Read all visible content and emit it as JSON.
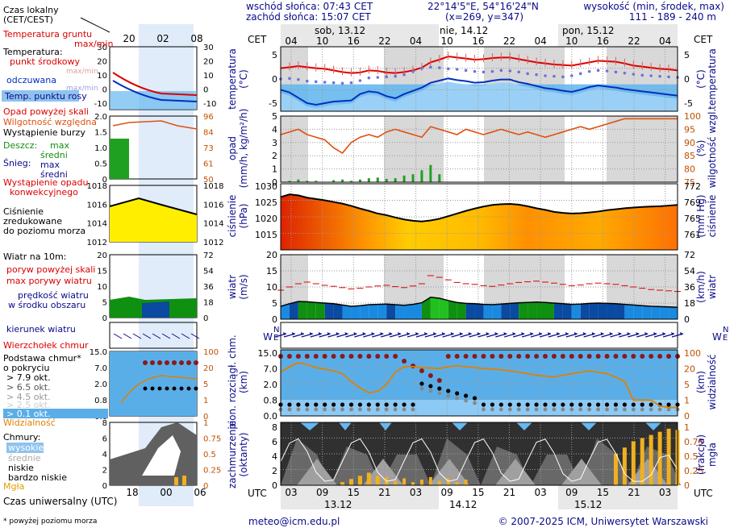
{
  "header": {
    "sunrise": "wschód słońca: 07:43 CET",
    "sunset": "zachód słońca: 15:07 CET",
    "coords": "22°14'5\"E, 54°16'24\"N",
    "grid": "(x=269,  y=347)",
    "height_label": "wysokość (min, środek, max)",
    "height_values": "111 - 189 - 240 m"
  },
  "days": {
    "top": [
      "sob, 13.12",
      "nie, 14.12",
      "pon, 15.12"
    ],
    "bottom": [
      "13.12",
      "14.12",
      "15.12"
    ]
  },
  "cet_ticks": [
    "04",
    "10",
    "16",
    "22",
    "04",
    "10",
    "16",
    "22",
    "04",
    "10",
    "16",
    "22",
    "04"
  ],
  "utc_ticks": [
    "03",
    "09",
    "15",
    "21",
    "03",
    "09",
    "15",
    "21",
    "03",
    "09",
    "15",
    "21",
    "03"
  ],
  "cet_label": "CET",
  "utc_label": "UTC",
  "legend": {
    "time_local": "Czas lokalny",
    "time_local2": "(CET/CEST)",
    "time_local_ticks": [
      "20",
      "02",
      "08"
    ],
    "time_utc": "Czas uniwersalny (UTC)",
    "time_utc_ticks": [
      "18",
      "00",
      "06"
    ],
    "temp": {
      "ground": "Temperatura gruntu",
      "ground_mm": "max/min",
      "temp": "Temperatura:",
      "mid": "punkt środkowy",
      "max_min": "max/min",
      "odczuwana": "odczuwana",
      "odcz_mm": "max/min",
      "dew": "Temp. punktu rosy",
      "ticks": [
        "30",
        "20",
        "10",
        "0",
        "-10"
      ]
    },
    "precip": {
      "above": "Opad powyżej skali",
      "humidity": "Wilgotność względna",
      "storm": "Wystąpienie burzy",
      "rain": "Deszcz:",
      "rain_max": "max",
      "rain_mid": "średni",
      "snow": "Śnieg:",
      "snow_max": "max",
      "snow_mid": "średni",
      "occur": "Wystąpienie opadu",
      "occur2": "konwekcyjnego",
      "ticks_l": [
        "2.0",
        "1.5",
        "1.0",
        "0.5",
        "0"
      ],
      "ticks_r": [
        "96",
        "84",
        "73",
        "61",
        "50"
      ]
    },
    "pressure": {
      "l1": "Ciśnienie",
      "l2": "zredukowane",
      "l3": "do poziomu morza",
      "ticks": [
        "1018",
        "1016",
        "1014",
        "1012"
      ]
    },
    "wind": {
      "title": "Wiatr na 10m:",
      "gust_above": "poryw powyżej skali",
      "gust_max": "max porywy wiatru",
      "speed": "prędkość wiatru",
      "speed2": "w środku obszaru",
      "ticks_l": [
        "20",
        "15",
        "10",
        "5",
        "0"
      ],
      "ticks_r": [
        "72",
        "54",
        "36",
        "18",
        "0"
      ]
    },
    "direction": "kierunek wiatru",
    "clouds": {
      "top": "Wierzchołek chmur",
      "base": "Podstawa chmur*",
      "base2": "o pokryciu",
      "o79": "> 7.9 okt.",
      "o65": "> 6.5 okt.",
      "o45": "> 4.5 okt.",
      "o25": "> 2.5 okt.",
      "o01": "> 0.1 okt.",
      "vis": "Widzialność",
      "ticks_l": [
        "15.0",
        "7.0",
        "2.0",
        "0.8",
        "0.0"
      ],
      "ticks_r": [
        "100",
        "20",
        "5",
        "1",
        "0"
      ]
    },
    "cover": {
      "title": "Chmury:",
      "high": "wysokie",
      "mid": "średnie",
      "low": "niskie",
      "vlow": "bardzo niskie",
      "fog": "Mgła",
      "ticks_l": [
        "8",
        "6",
        "4",
        "2",
        "0"
      ],
      "ticks_r": [
        "1",
        "0.75",
        "0.5",
        "0.25",
        "0"
      ]
    },
    "footnote": "* powyżej poziomu morza"
  },
  "axis_labels": {
    "temp_l": "temperatura",
    "temp_l2": "(°C)",
    "temp_r": "temperatura",
    "temp_r2": "(°C)",
    "precip_l": "opad",
    "precip_l2": "(mm/h, kg/m²/h)",
    "precip_r": "wilgotność wzgl.",
    "precip_r2": "(%)",
    "press_l": "ciśnienie",
    "press_l2": "(hPa)",
    "press_r": "ciśnienie",
    "press_r2": "(mm Hg)",
    "wind_l": "wiatr",
    "wind_l2": "(m/s)",
    "wind_r": "wiatr",
    "wind_r2": "(km/h)",
    "cloud_l": "pion. rozciągł. chm.",
    "cloud_l2": "(km)",
    "cloud_r": "widzialność",
    "cloud_r2": "(km)",
    "cover_l": "zachmurzenie",
    "cover_l2": "(oktanty)",
    "cover_r": "mgła",
    "cover_r2": "(frakcja)"
  },
  "footer": {
    "email": "meteo@icm.edu.pl",
    "copyright": "© 2007-2025 ICM, Uniwersytet Warszawski"
  },
  "colors": {
    "navy": "#0a0a8a",
    "red": "#dd0000",
    "orange": "#e08000",
    "sky": "#66b8f0"
  },
  "chart_data": [
    {
      "type": "line",
      "name": "temperature",
      "y_ticks": [
        "5",
        "0",
        "-5"
      ],
      "y_ticks_r": [
        "5",
        "0",
        "-5"
      ],
      "ylim": [
        -5,
        7
      ],
      "temp": [
        3,
        3.2,
        3.4,
        3.2,
        3,
        2.9,
        2.6,
        2.3,
        2.1,
        2.2,
        2.6,
        2.5,
        2.2,
        2.1,
        2.3,
        2.6,
        3.1,
        4.1,
        4.6,
        5.2,
        5.0,
        4.8,
        4.6,
        4.7,
        4.9,
        5.0,
        5.0,
        4.7,
        4.4,
        4.1,
        3.9,
        3.7,
        3.6,
        3.5,
        3.8,
        4.1,
        4.4,
        4.3,
        4.2,
        3.9,
        3.5,
        3.3,
        3.1,
        2.9,
        2.8,
        2.6
      ],
      "feels": [
        -1,
        -1.5,
        -2.5,
        -3.5,
        -3.8,
        -3.5,
        -3.2,
        -3.1,
        -3.0,
        -1.8,
        -1.3,
        -1.5,
        -2.2,
        -2.6,
        -1.8,
        -1.2,
        -0.6,
        0.3,
        0.7,
        1.1,
        0.8,
        0.6,
        0.3,
        0.4,
        0.7,
        0.9,
        0.9,
        0.4,
        0.1,
        -0.3,
        -0.7,
        -0.9,
        -1.2,
        -1.4,
        -1.0,
        -0.5,
        -0.2,
        -0.4,
        -0.6,
        -0.9,
        -1.1,
        -1.3,
        -1.5,
        -1.7,
        -1.9,
        -2.1
      ],
      "dew": [
        1.0,
        1.1,
        0.9,
        0.6,
        0.5,
        0.4,
        0.3,
        0.2,
        0.3,
        0.7,
        1.2,
        1.3,
        1.4,
        1.5,
        1.8,
        2.4,
        3.0,
        3.2,
        3.1,
        2.9,
        2.8,
        2.6,
        2.4,
        2.3,
        2.4,
        2.6,
        2.5,
        2.3,
        2.0,
        1.8,
        1.6,
        1.5,
        1.4,
        1.6,
        2.0,
        2.4,
        2.6,
        2.5,
        2.3,
        2.1,
        1.9,
        1.7,
        1.6,
        1.5,
        1.4,
        1.3
      ]
    },
    {
      "type": "bar",
      "name": "precipitation",
      "y_ticks": [
        "5",
        "4",
        "3",
        "2",
        "1",
        "0"
      ],
      "y_ticks_r": [
        "100",
        "95",
        "90",
        "85",
        "80",
        "75"
      ],
      "ylim": [
        0,
        5
      ],
      "rain": [
        0,
        0.1,
        0.2,
        0.1,
        0.1,
        0,
        0.15,
        0.2,
        0.1,
        0.2,
        0.3,
        0.35,
        0.25,
        0.3,
        0.5,
        0.6,
        0.9,
        1.3,
        0.6,
        0,
        0,
        0,
        0,
        0,
        0,
        0,
        0,
        0,
        0,
        0,
        0,
        0,
        0,
        0,
        0,
        0,
        0,
        0,
        0,
        0,
        0,
        0,
        0,
        0,
        0,
        0
      ],
      "humidity": [
        93,
        94,
        95,
        93,
        92,
        91,
        88,
        86,
        90,
        92,
        93,
        92,
        94,
        95,
        94,
        93,
        92,
        96,
        95,
        94,
        93,
        95,
        94,
        93,
        94,
        95,
        94,
        93,
        94,
        93,
        92,
        93,
        94,
        95,
        96,
        95,
        96,
        97,
        98,
        99,
        99,
        99,
        99,
        99,
        99,
        99
      ]
    },
    {
      "type": "area",
      "name": "pressure",
      "y_ticks": [
        "1030",
        "1025",
        "1020",
        "1015"
      ],
      "y_ticks_r": [
        "772",
        "769",
        "765",
        "761"
      ],
      "ylim": [
        1010,
        1030
      ],
      "values": [
        1026,
        1026.8,
        1026.5,
        1025.8,
        1025.4,
        1025.0,
        1024.5,
        1024.0,
        1023.3,
        1022.5,
        1021.8,
        1021.0,
        1020.5,
        1019.8,
        1019.2,
        1018.8,
        1018.6,
        1018.9,
        1019.4,
        1020.2,
        1021.0,
        1021.8,
        1022.5,
        1023.1,
        1023.6,
        1023.8,
        1023.9,
        1023.7,
        1023.2,
        1022.6,
        1022.1,
        1021.5,
        1021.2,
        1021.0,
        1021.1,
        1021.3,
        1021.6,
        1022.0,
        1022.3,
        1022.6,
        1022.8,
        1023.0,
        1023.1,
        1023.2,
        1023.4,
        1023.6
      ]
    },
    {
      "type": "area",
      "name": "wind",
      "y_ticks": [
        "20",
        "15",
        "10",
        "5",
        "0"
      ],
      "y_ticks_r": [
        "72",
        "54",
        "36",
        "18",
        "0"
      ],
      "ylim": [
        0,
        20
      ],
      "speed": [
        4,
        4.8,
        5.5,
        5.4,
        5.2,
        5.0,
        4.8,
        4.4,
        4.0,
        4.2,
        4.5,
        4.6,
        4.7,
        4.5,
        4.3,
        4.6,
        5.1,
        6.8,
        6.5,
        5.8,
        5.2,
        4.9,
        4.8,
        4.6,
        4.5,
        4.7,
        4.9,
        5.1,
        5.2,
        5.3,
        5.2,
        5.0,
        4.8,
        4.6,
        4.7,
        4.9,
        5.0,
        4.9,
        4.8,
        4.6,
        4.4,
        4.2,
        4.0,
        3.9,
        3.8,
        3.7
      ],
      "gust": [
        9,
        10,
        11,
        11.5,
        11,
        10.5,
        10.2,
        9.8,
        9.4,
        9.6,
        10,
        10.3,
        10.5,
        10.1,
        9.8,
        10.3,
        11,
        13.5,
        13,
        12.2,
        11.4,
        11,
        10.8,
        10.4,
        10.2,
        10.6,
        11,
        11.4,
        11.6,
        11.8,
        11.5,
        11.2,
        10.8,
        10.4,
        10.6,
        11,
        11.2,
        11,
        10.8,
        10.4,
        10.0,
        9.6,
        9.2,
        9.0,
        8.8,
        8.6
      ]
    },
    {
      "type": "scatter",
      "name": "cloud-base-visibility",
      "y_ticks": [
        "15.0",
        "7.0",
        "2.0",
        "0.8",
        "0.0"
      ],
      "y_ticks_r": [
        "100",
        "20",
        "5",
        "1",
        "0"
      ],
      "visibility": [
        20,
        30,
        40,
        35,
        28,
        25,
        22,
        18,
        10,
        6,
        4,
        4.5,
        8,
        20,
        30,
        30,
        28,
        27,
        26,
        30,
        32,
        30,
        28,
        26,
        25,
        24,
        22,
        20,
        18,
        16,
        15,
        14,
        16,
        18,
        20,
        22,
        20,
        18,
        14,
        10,
        2,
        2,
        2,
        1,
        0.8,
        0.8
      ]
    },
    {
      "type": "area",
      "name": "cloud-cover",
      "y_ticks": [
        "8",
        "6",
        "4",
        "2",
        "0"
      ],
      "y_ticks_r": [
        "1",
        "0.75",
        "0.5",
        "0.25",
        "0"
      ],
      "ylim": [
        0,
        8
      ],
      "fog": [
        0,
        0,
        0,
        0,
        0,
        0,
        0,
        0.05,
        0.1,
        0.15,
        0.2,
        0.15,
        0.05,
        0,
        0,
        0,
        0,
        0,
        0,
        0,
        0,
        0,
        0,
        0,
        0,
        0,
        0,
        0,
        0,
        0,
        0,
        0,
        0,
        0,
        0,
        0,
        0,
        0,
        0.5,
        0.6,
        0.7,
        0.75,
        0.8,
        0.85,
        0.9,
        0.88
      ]
    }
  ]
}
